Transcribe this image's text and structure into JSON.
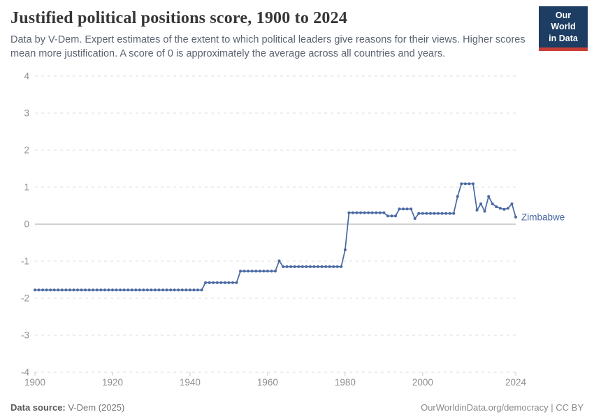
{
  "header": {
    "title": "Justified political positions score, 1900 to 2024",
    "subtitle": "Data by V-Dem. Expert estimates of the extent to which political leaders give reasons for their views. Higher scores mean more justification. A score of 0 is approximately the average across all countries and years.",
    "logo_line1": "Our World",
    "logo_line2": "in Data"
  },
  "chart_data": {
    "type": "line",
    "title": "Justified political positions score, 1900 to 2024",
    "xlabel": "",
    "ylabel": "",
    "x_axis": {
      "min": 1900,
      "max": 2024,
      "tick_labels": [
        1900,
        1920,
        1940,
        1960,
        1980,
        2000,
        2024
      ]
    },
    "y_axis": {
      "min": -4,
      "max": 4,
      "tick_labels": [
        -4,
        -3,
        -2,
        -1,
        0,
        1,
        2,
        3,
        4
      ],
      "zero_line": true
    },
    "grid": "horizontal-dashed",
    "legend_position": "end-of-line-label",
    "series": [
      {
        "name": "Zimbabwe",
        "color": "#4868a2",
        "segments_note": "each segment is [first_year, last_year, value]; yearly data points",
        "segments": [
          [
            1900,
            1943,
            -1.78
          ],
          [
            1944,
            1952,
            -1.58
          ],
          [
            1953,
            1962,
            -1.27
          ],
          [
            1963,
            1963,
            -0.99
          ],
          [
            1964,
            1979,
            -1.15
          ],
          [
            1980,
            1980,
            -0.69
          ],
          [
            1981,
            1990,
            0.31
          ],
          [
            1991,
            1993,
            0.22
          ],
          [
            1994,
            1997,
            0.41
          ],
          [
            1998,
            1998,
            0.15
          ],
          [
            1999,
            2008,
            0.29
          ],
          [
            2009,
            2009,
            0.75
          ],
          [
            2010,
            2013,
            1.09
          ],
          [
            2014,
            2014,
            0.38
          ],
          [
            2015,
            2015,
            0.55
          ],
          [
            2016,
            2016,
            0.35
          ],
          [
            2017,
            2017,
            0.75
          ],
          [
            2018,
            2018,
            0.55
          ],
          [
            2019,
            2019,
            0.47
          ],
          [
            2020,
            2020,
            0.43
          ],
          [
            2021,
            2021,
            0.4
          ],
          [
            2022,
            2022,
            0.43
          ],
          [
            2023,
            2023,
            0.55
          ],
          [
            2024,
            2024,
            0.19
          ]
        ]
      }
    ]
  },
  "footer": {
    "source_label": "Data source:",
    "source_value": "V-Dem (2025)",
    "link": "OurWorldinData.org/democracy",
    "separator": " | ",
    "license": "CC BY"
  },
  "colors": {
    "line": "#4868a2",
    "grid_dashed": "#dcdcdc",
    "zero_line": "#a3a3a3",
    "axis_text": "#8f8f8f",
    "tick_mark": "#c9c9c9",
    "logo_bg": "#1d3d63",
    "logo_red": "#c73e36"
  }
}
